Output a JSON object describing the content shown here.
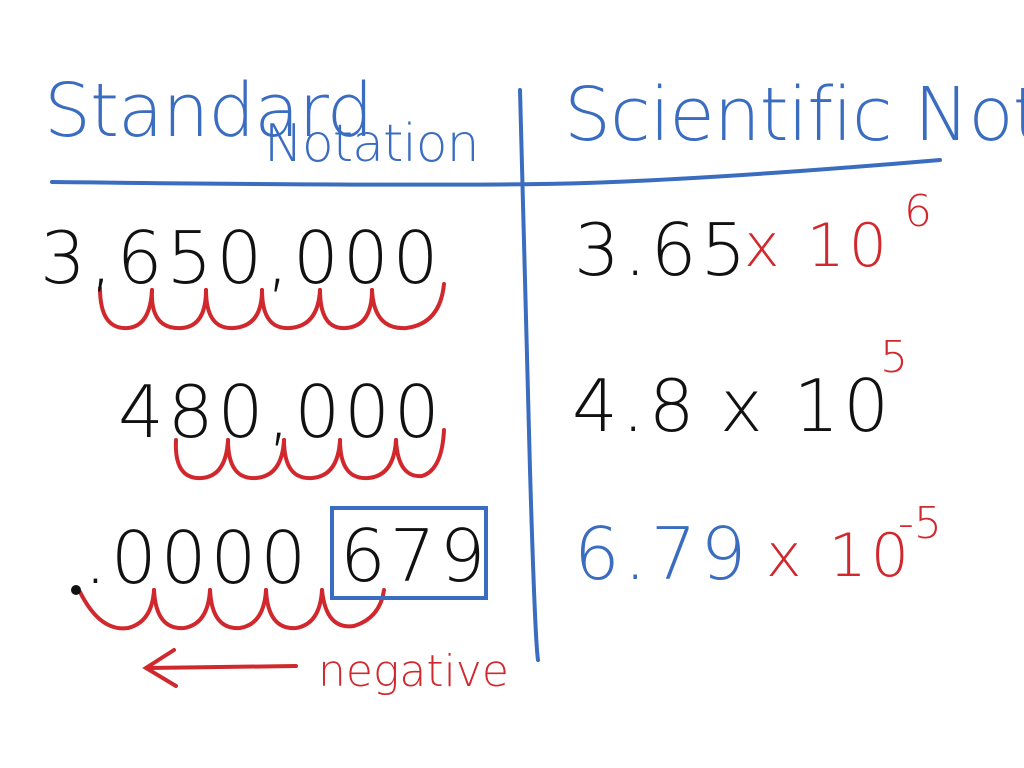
{
  "colors": {
    "blue": "#3a6cc0",
    "black": "#111111",
    "red": "#d0282c"
  },
  "headers": {
    "left_line1": "Standard",
    "left_line2": "Notation",
    "right": "Scientific Not."
  },
  "rows": [
    {
      "standard": "3,650,000",
      "coefficient": "3.65",
      "times": "x 10",
      "exponent": "6"
    },
    {
      "standard": "480,000",
      "coefficient": "4.8",
      "times": "x 10",
      "exponent": "5"
    },
    {
      "standard_zeros": ".0000",
      "standard_digits": "679",
      "coefficient": "6.79",
      "times": "x 10",
      "exponent": "-5"
    }
  ],
  "annotation": {
    "arrow": "left-arrow",
    "label": "negative"
  }
}
